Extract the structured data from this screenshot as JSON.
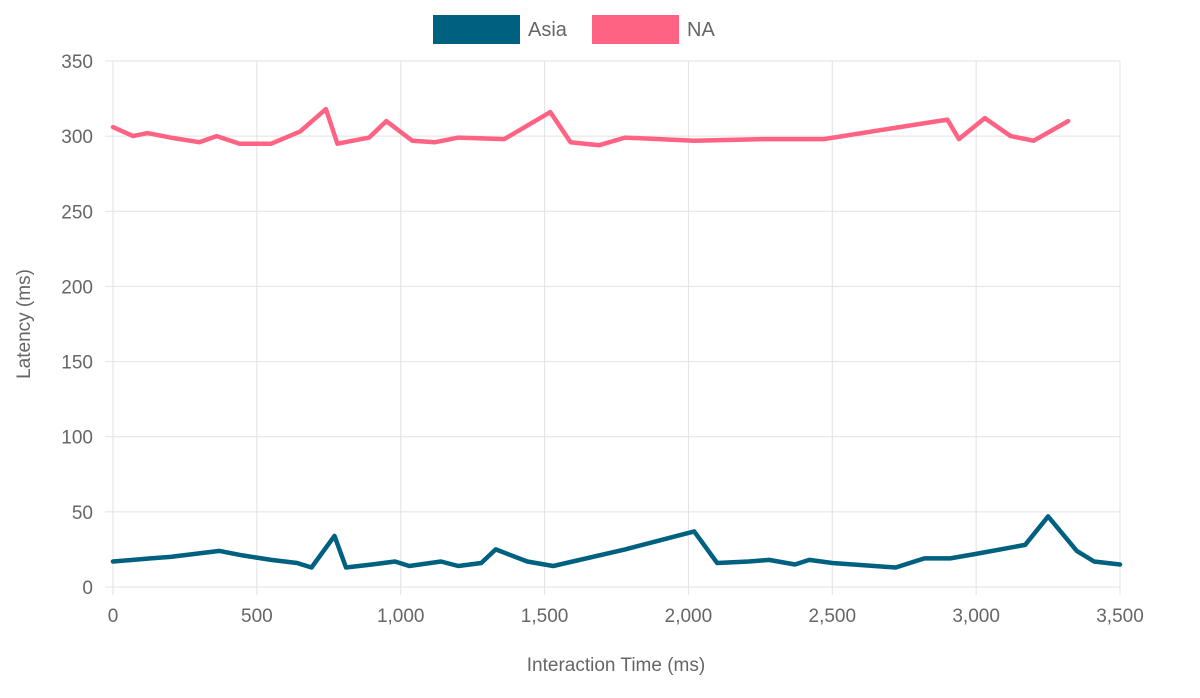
{
  "chart_data": {
    "type": "line",
    "title": "",
    "xlabel": "Interaction Time (ms)",
    "ylabel": "Latency (ms)",
    "xlim": [
      0,
      3500
    ],
    "ylim": [
      0,
      350
    ],
    "x_ticks": [
      0,
      500,
      1000,
      1500,
      2000,
      2500,
      3000,
      3500
    ],
    "x_tick_labels": [
      "0",
      "500",
      "1,000",
      "1,500",
      "2,000",
      "2,500",
      "3,000",
      "3,500"
    ],
    "y_ticks": [
      0,
      50,
      100,
      150,
      200,
      250,
      300,
      350
    ],
    "y_tick_labels": [
      "0",
      "50",
      "100",
      "150",
      "200",
      "250",
      "300",
      "350"
    ],
    "grid": true,
    "legend_position": "top-center",
    "series": [
      {
        "name": "Asia",
        "color": "#006080",
        "points": [
          [
            0,
            17
          ],
          [
            130,
            19
          ],
          [
            200,
            20
          ],
          [
            370,
            24
          ],
          [
            450,
            21
          ],
          [
            550,
            18
          ],
          [
            640,
            16
          ],
          [
            690,
            13
          ],
          [
            770,
            34
          ],
          [
            810,
            13
          ],
          [
            900,
            15
          ],
          [
            980,
            17
          ],
          [
            1030,
            14
          ],
          [
            1140,
            17
          ],
          [
            1200,
            14
          ],
          [
            1280,
            16
          ],
          [
            1330,
            25
          ],
          [
            1440,
            17
          ],
          [
            1530,
            14
          ],
          [
            1780,
            25
          ],
          [
            2020,
            37
          ],
          [
            2100,
            16
          ],
          [
            2210,
            17
          ],
          [
            2280,
            18
          ],
          [
            2370,
            15
          ],
          [
            2420,
            18
          ],
          [
            2500,
            16
          ],
          [
            2720,
            13
          ],
          [
            2820,
            19
          ],
          [
            2910,
            19
          ],
          [
            3000,
            22
          ],
          [
            3170,
            28
          ],
          [
            3250,
            47
          ],
          [
            3350,
            24
          ],
          [
            3410,
            17
          ],
          [
            3500,
            15
          ]
        ]
      },
      {
        "name": "NA",
        "color": "#ff6384",
        "points": [
          [
            0,
            306
          ],
          [
            70,
            300
          ],
          [
            120,
            302
          ],
          [
            200,
            299
          ],
          [
            300,
            296
          ],
          [
            360,
            300
          ],
          [
            440,
            295
          ],
          [
            550,
            295
          ],
          [
            650,
            303
          ],
          [
            740,
            318
          ],
          [
            780,
            295
          ],
          [
            890,
            299
          ],
          [
            950,
            310
          ],
          [
            1040,
            297
          ],
          [
            1120,
            296
          ],
          [
            1200,
            299
          ],
          [
            1360,
            298
          ],
          [
            1520,
            316
          ],
          [
            1590,
            296
          ],
          [
            1690,
            294
          ],
          [
            1780,
            299
          ],
          [
            2020,
            297
          ],
          [
            2260,
            298
          ],
          [
            2470,
            298
          ],
          [
            2900,
            311
          ],
          [
            2940,
            298
          ],
          [
            3030,
            312
          ],
          [
            3120,
            300
          ],
          [
            3200,
            297
          ],
          [
            3320,
            310
          ]
        ]
      }
    ]
  }
}
